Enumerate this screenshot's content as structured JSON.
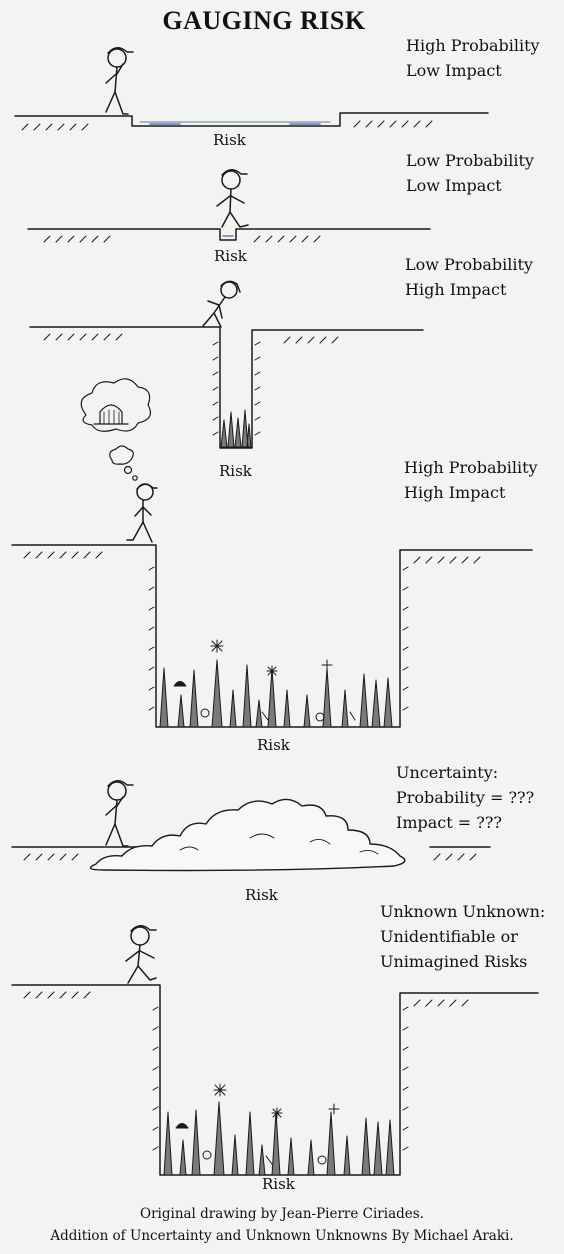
{
  "title": "GAUGING RISK",
  "panels": [
    {
      "lines": [
        "High Probability",
        "Low Impact"
      ],
      "risk": "Risk"
    },
    {
      "lines": [
        "Low Probability",
        "Low Impact"
      ],
      "risk": "Risk"
    },
    {
      "lines": [
        "Low Probability",
        "High Impact"
      ],
      "risk": "Risk"
    },
    {
      "lines": [
        "High Probability",
        "High Impact"
      ],
      "risk": "Risk"
    },
    {
      "lines": [
        "Uncertainty:",
        "Probability = ???",
        "Impact = ???"
      ],
      "risk": "Risk"
    },
    {
      "lines": [
        "Unknown Unknown:",
        "Unidentifiable or",
        "Unimagined Risks"
      ],
      "risk": "Risk"
    }
  ],
  "credits": [
    "Original drawing by Jean-Pierre Ciriades.",
    "Addition of Uncertainty and Unknown Unknowns By Michael Araki."
  ],
  "colors": {
    "ink": "#1a1a1a",
    "paper": "#f3f3f1",
    "water": "#5b7fb0",
    "spike": "#7a7a7a"
  }
}
